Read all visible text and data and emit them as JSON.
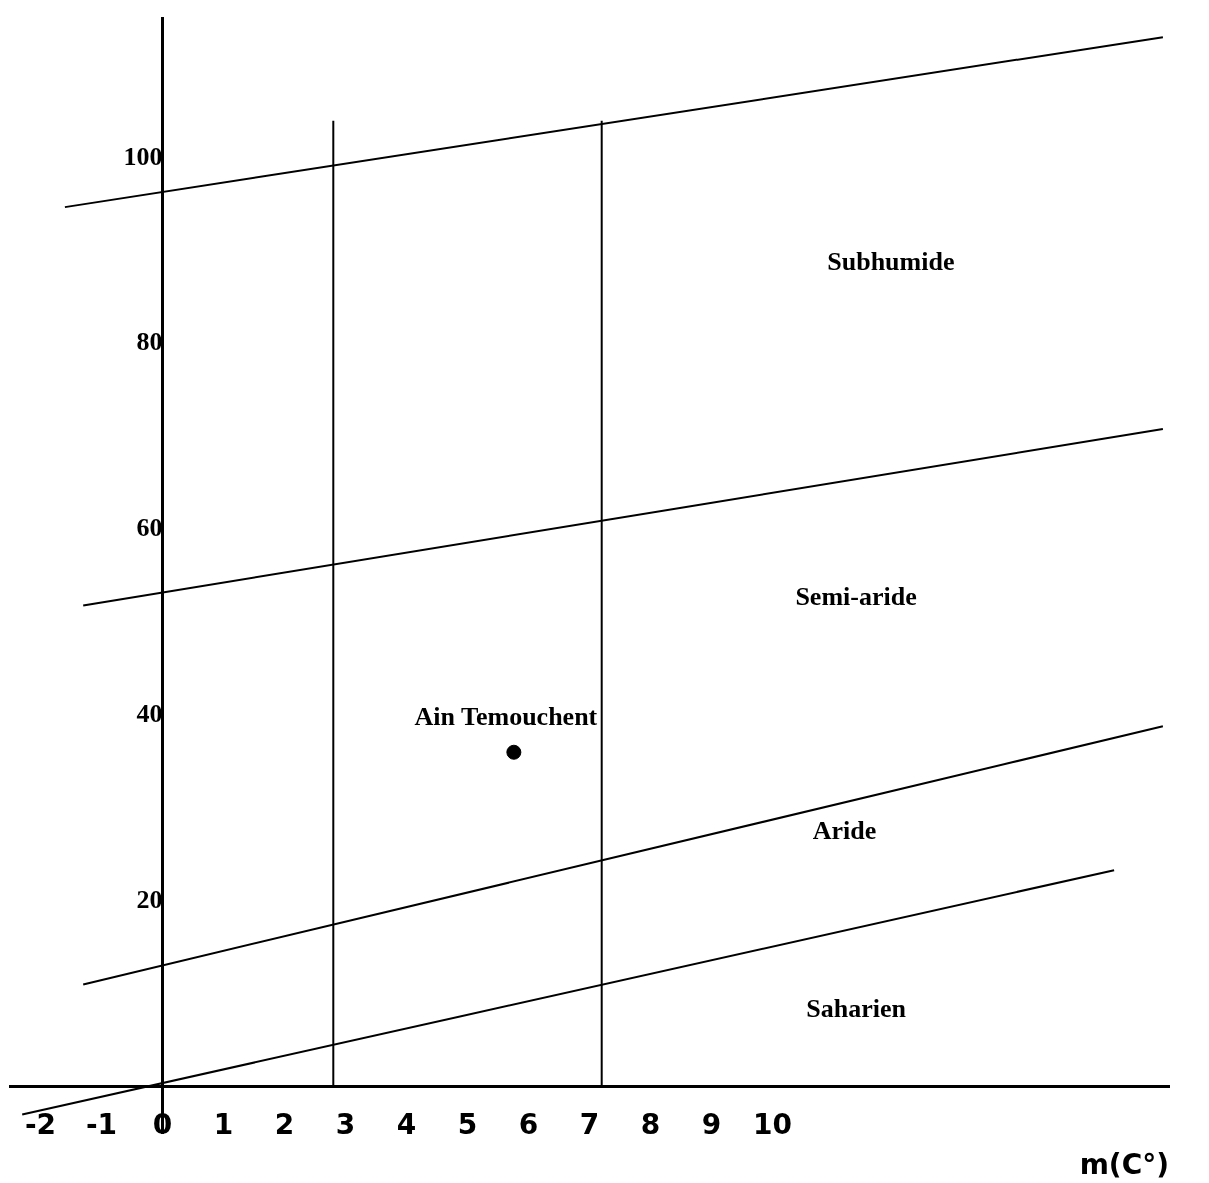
{
  "chart_data": {
    "type": "line",
    "xlabel": "m(C°)",
    "xlim": [
      -2.5,
      16.5
    ],
    "ylim": [
      -5,
      115
    ],
    "xticks": [
      -2,
      -1,
      0,
      1,
      2,
      3,
      4,
      5,
      6,
      7,
      8,
      9,
      10
    ],
    "yticks": [
      20,
      40,
      60,
      80,
      100
    ],
    "grid": false,
    "legend": false,
    "line_style": "solid",
    "series": [
      {
        "color": "#000000",
        "x": [
          -1.6,
          16.4
        ],
        "values": [
          94.7,
          113
        ]
      },
      {
        "color": "#000000",
        "x": [
          -1.3,
          16.4
        ],
        "values": [
          51.8,
          70.8
        ]
      },
      {
        "color": "#000000",
        "x": [
          -1.3,
          16.4
        ],
        "values": [
          11,
          38.8
        ]
      },
      {
        "color": "#000000",
        "x": [
          -2.3,
          15.6
        ],
        "values": [
          -3,
          23.3
        ]
      },
      {
        "color": "#000000",
        "x": [
          2.8,
          2.8
        ],
        "values": [
          0,
          104
        ]
      },
      {
        "color": "#000000",
        "x": [
          7.2,
          7.2
        ],
        "values": [
          0,
          104
        ]
      },
      {
        "type": "scatter",
        "name": "Ain Temouchent",
        "marker": "circle",
        "color": "#000000",
        "x": [
          5.76
        ],
        "values": [
          36
        ]
      }
    ],
    "annotations": [
      "Subhumide",
      "Semi-aride",
      "Aride",
      "Saharien"
    ]
  }
}
